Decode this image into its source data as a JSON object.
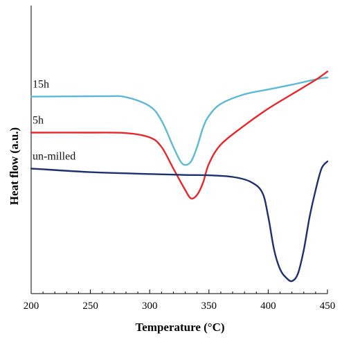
{
  "chart_data": {
    "type": "line",
    "xlabel": "Temperature (°C)",
    "ylabel": "Heat flow (a.u.)",
    "xlim": [
      200,
      450
    ],
    "ylim": [
      0,
      100
    ],
    "x_ticks": [
      200,
      250,
      300,
      350,
      400,
      450
    ],
    "y_ticks": [],
    "grid": false,
    "legend": "none",
    "series": [
      {
        "name": "15h",
        "color": "#5bbad3",
        "points": [
          [
            200,
            77
          ],
          [
            260,
            77.2
          ],
          [
            280,
            76.8
          ],
          [
            300,
            73
          ],
          [
            310,
            67
          ],
          [
            320,
            56
          ],
          [
            326,
            50
          ],
          [
            330,
            48.5
          ],
          [
            335,
            50
          ],
          [
            340,
            56
          ],
          [
            345,
            64
          ],
          [
            350,
            69
          ],
          [
            360,
            74
          ],
          [
            380,
            78
          ],
          [
            400,
            80
          ],
          [
            420,
            82
          ],
          [
            440,
            84.2
          ],
          [
            450,
            85
          ]
        ]
      },
      {
        "name": "5h",
        "color": "#e8262b",
        "points": [
          [
            200,
            62
          ],
          [
            250,
            62
          ],
          [
            280,
            61.8
          ],
          [
            300,
            60
          ],
          [
            310,
            56
          ],
          [
            320,
            47
          ],
          [
            330,
            38
          ],
          [
            335,
            34.5
          ],
          [
            340,
            36
          ],
          [
            345,
            41
          ],
          [
            350,
            49
          ],
          [
            360,
            57
          ],
          [
            380,
            65
          ],
          [
            400,
            72
          ],
          [
            420,
            78
          ],
          [
            440,
            84
          ],
          [
            450,
            87.5
          ]
        ]
      },
      {
        "name": "un-milled",
        "color": "#1c2f6e",
        "points": [
          [
            200,
            47
          ],
          [
            250,
            45.5
          ],
          [
            300,
            44.7
          ],
          [
            330,
            44.3
          ],
          [
            350,
            44.2
          ],
          [
            370,
            43.5
          ],
          [
            385,
            41.5
          ],
          [
            395,
            37
          ],
          [
            400,
            27
          ],
          [
            405,
            13
          ],
          [
            410,
            5
          ],
          [
            415,
            1.5
          ],
          [
            420,
            0
          ],
          [
            425,
            3
          ],
          [
            430,
            13
          ],
          [
            435,
            27
          ],
          [
            440,
            38
          ],
          [
            445,
            47
          ],
          [
            450,
            50
          ]
        ]
      }
    ]
  }
}
